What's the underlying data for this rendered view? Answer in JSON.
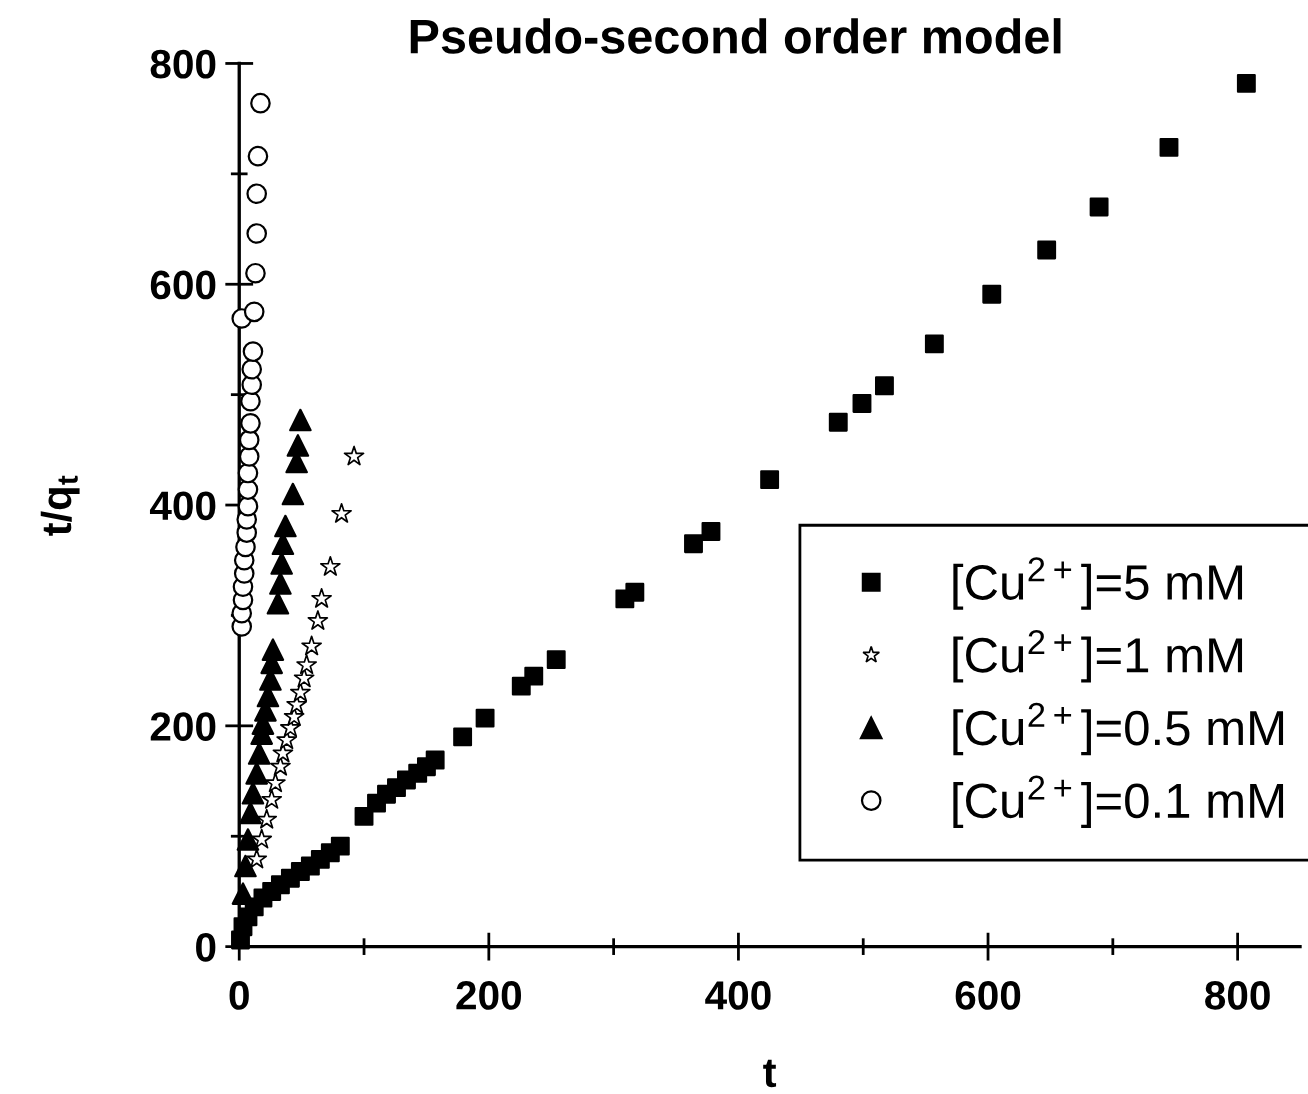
{
  "chart_data": {
    "type": "scatter",
    "title": "Pseudo-second order model",
    "xlabel": "t",
    "ylabel": "t/q$_{t}$",
    "xlim": [
      0,
      850
    ],
    "ylim": [
      0,
      800
    ],
    "xticks": [
      0,
      {
        "value": 100,
        "label": null
      },
      200,
      {
        "value": 300,
        "label": null
      },
      400,
      {
        "value": 500,
        "label": null
      },
      600,
      {
        "value": 700,
        "label": null
      },
      800
    ],
    "yticks": [
      0,
      {
        "value": 100,
        "label": null
      },
      200,
      {
        "value": 300,
        "label": null
      },
      400,
      {
        "value": 500,
        "label": null
      },
      600,
      {
        "value": 700,
        "label": null
      },
      800
    ],
    "legend": "lower right",
    "series": [
      {
        "name": "[Cu$^{2+}$]=5 mM",
        "color": "#000000",
        "marker": "square",
        "x": [
          1,
          3,
          7,
          12,
          19,
          26,
          33,
          41,
          49,
          57,
          65,
          73,
          81,
          100,
          110,
          118,
          126,
          134,
          143,
          150,
          157,
          179,
          197,
          226,
          236,
          254,
          309,
          317,
          364,
          378,
          425,
          480,
          499,
          517,
          557,
          603,
          647,
          689,
          745,
          807
        ],
        "values": [
          6,
          18,
          27,
          36,
          44,
          50,
          56,
          62,
          68,
          73,
          79,
          85,
          91,
          118,
          130,
          138,
          144,
          151,
          157,
          163,
          169,
          190,
          207,
          236,
          245,
          260,
          315,
          321,
          365,
          376,
          423,
          475,
          492,
          508,
          546,
          591,
          631,
          670,
          724,
          782
        ]
      },
      {
        "name": "[Cu$^{2+}$]=1 mM",
        "color": "#000000",
        "marker": "star",
        "x": [
          14,
          18,
          22,
          26,
          29,
          33,
          35,
          38,
          41,
          44,
          46,
          49,
          52,
          54,
          58,
          63,
          66,
          73,
          82,
          92
        ],
        "values": [
          79,
          97,
          115,
          133,
          148,
          163,
          175,
          187,
          198,
          208,
          219,
          230,
          243,
          255,
          272,
          295,
          315,
          344,
          392,
          444
        ]
      },
      {
        "name": "[Cu$^{2+}$]=0.5 mM",
        "color": "#000000",
        "marker": "triangle",
        "x": [
          3,
          5,
          7,
          9,
          11,
          14,
          16,
          18,
          19,
          21,
          23,
          25,
          26,
          27,
          31,
          33,
          34,
          35,
          37,
          43,
          46,
          47,
          49
        ],
        "values": [
          48,
          73,
          97,
          121,
          139,
          157,
          175,
          193,
          202,
          214,
          227,
          242,
          257,
          269,
          311,
          329,
          347,
          365,
          381,
          410,
          439,
          454,
          477
        ]
      },
      {
        "name": "[Cu$^{2+}$]=0.1 mM",
        "color": "#000000",
        "marker": "circle",
        "x": [
          2,
          2,
          3,
          3,
          4,
          4,
          5,
          6,
          6,
          7,
          7,
          7,
          8,
          8,
          9,
          9,
          10,
          10,
          11,
          2,
          12,
          13,
          14,
          14,
          15,
          17
        ],
        "values": [
          290,
          302,
          314,
          326,
          338,
          350,
          362,
          375,
          387,
          399,
          414,
          429,
          444,
          459,
          474,
          494,
          509,
          523,
          539,
          569,
          575,
          610,
          646,
          682,
          716,
          764
        ]
      }
    ]
  }
}
